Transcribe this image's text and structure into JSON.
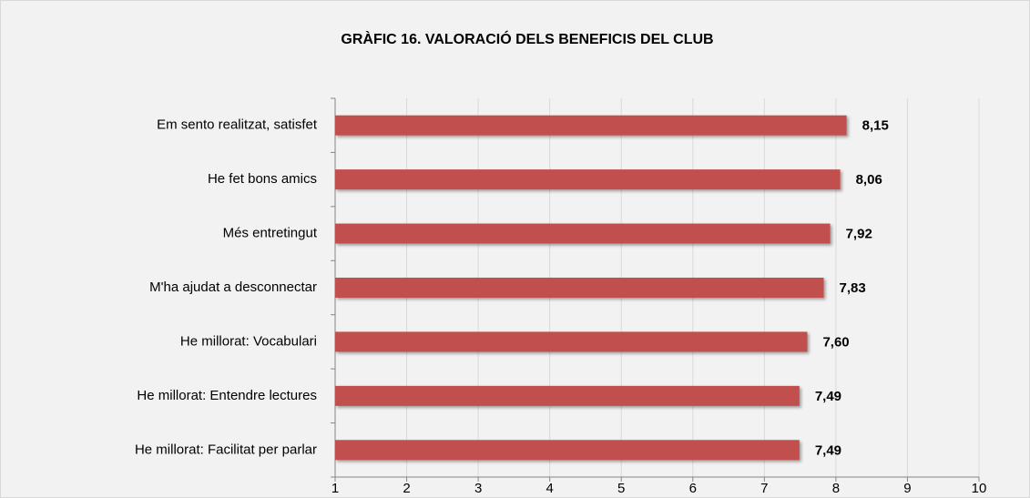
{
  "chart_data": {
    "type": "bar",
    "orientation": "horizontal",
    "title": "GRÀFIC 16. VALORACIÓ DELS BENEFICIS DEL CLUB",
    "categories": [
      "Em sento realitzat, satisfet",
      "He fet bons amics",
      "Més entretingut",
      "M'ha ajudat a desconnectar",
      "He millorat: Vocabulari",
      "He millorat: Entendre lectures",
      "He millorat: Facilitat per parlar"
    ],
    "values": [
      8.15,
      8.06,
      7.92,
      7.83,
      7.6,
      7.49,
      7.49
    ],
    "value_labels": [
      "8,15",
      "8,06",
      "7,92",
      "7,83",
      "7,60",
      "7,49",
      "7,49"
    ],
    "color": "#c0504d",
    "xlim": [
      1,
      10
    ],
    "xticks": [
      1,
      2,
      3,
      4,
      5,
      6,
      7,
      8,
      9,
      10
    ],
    "grid": true
  }
}
